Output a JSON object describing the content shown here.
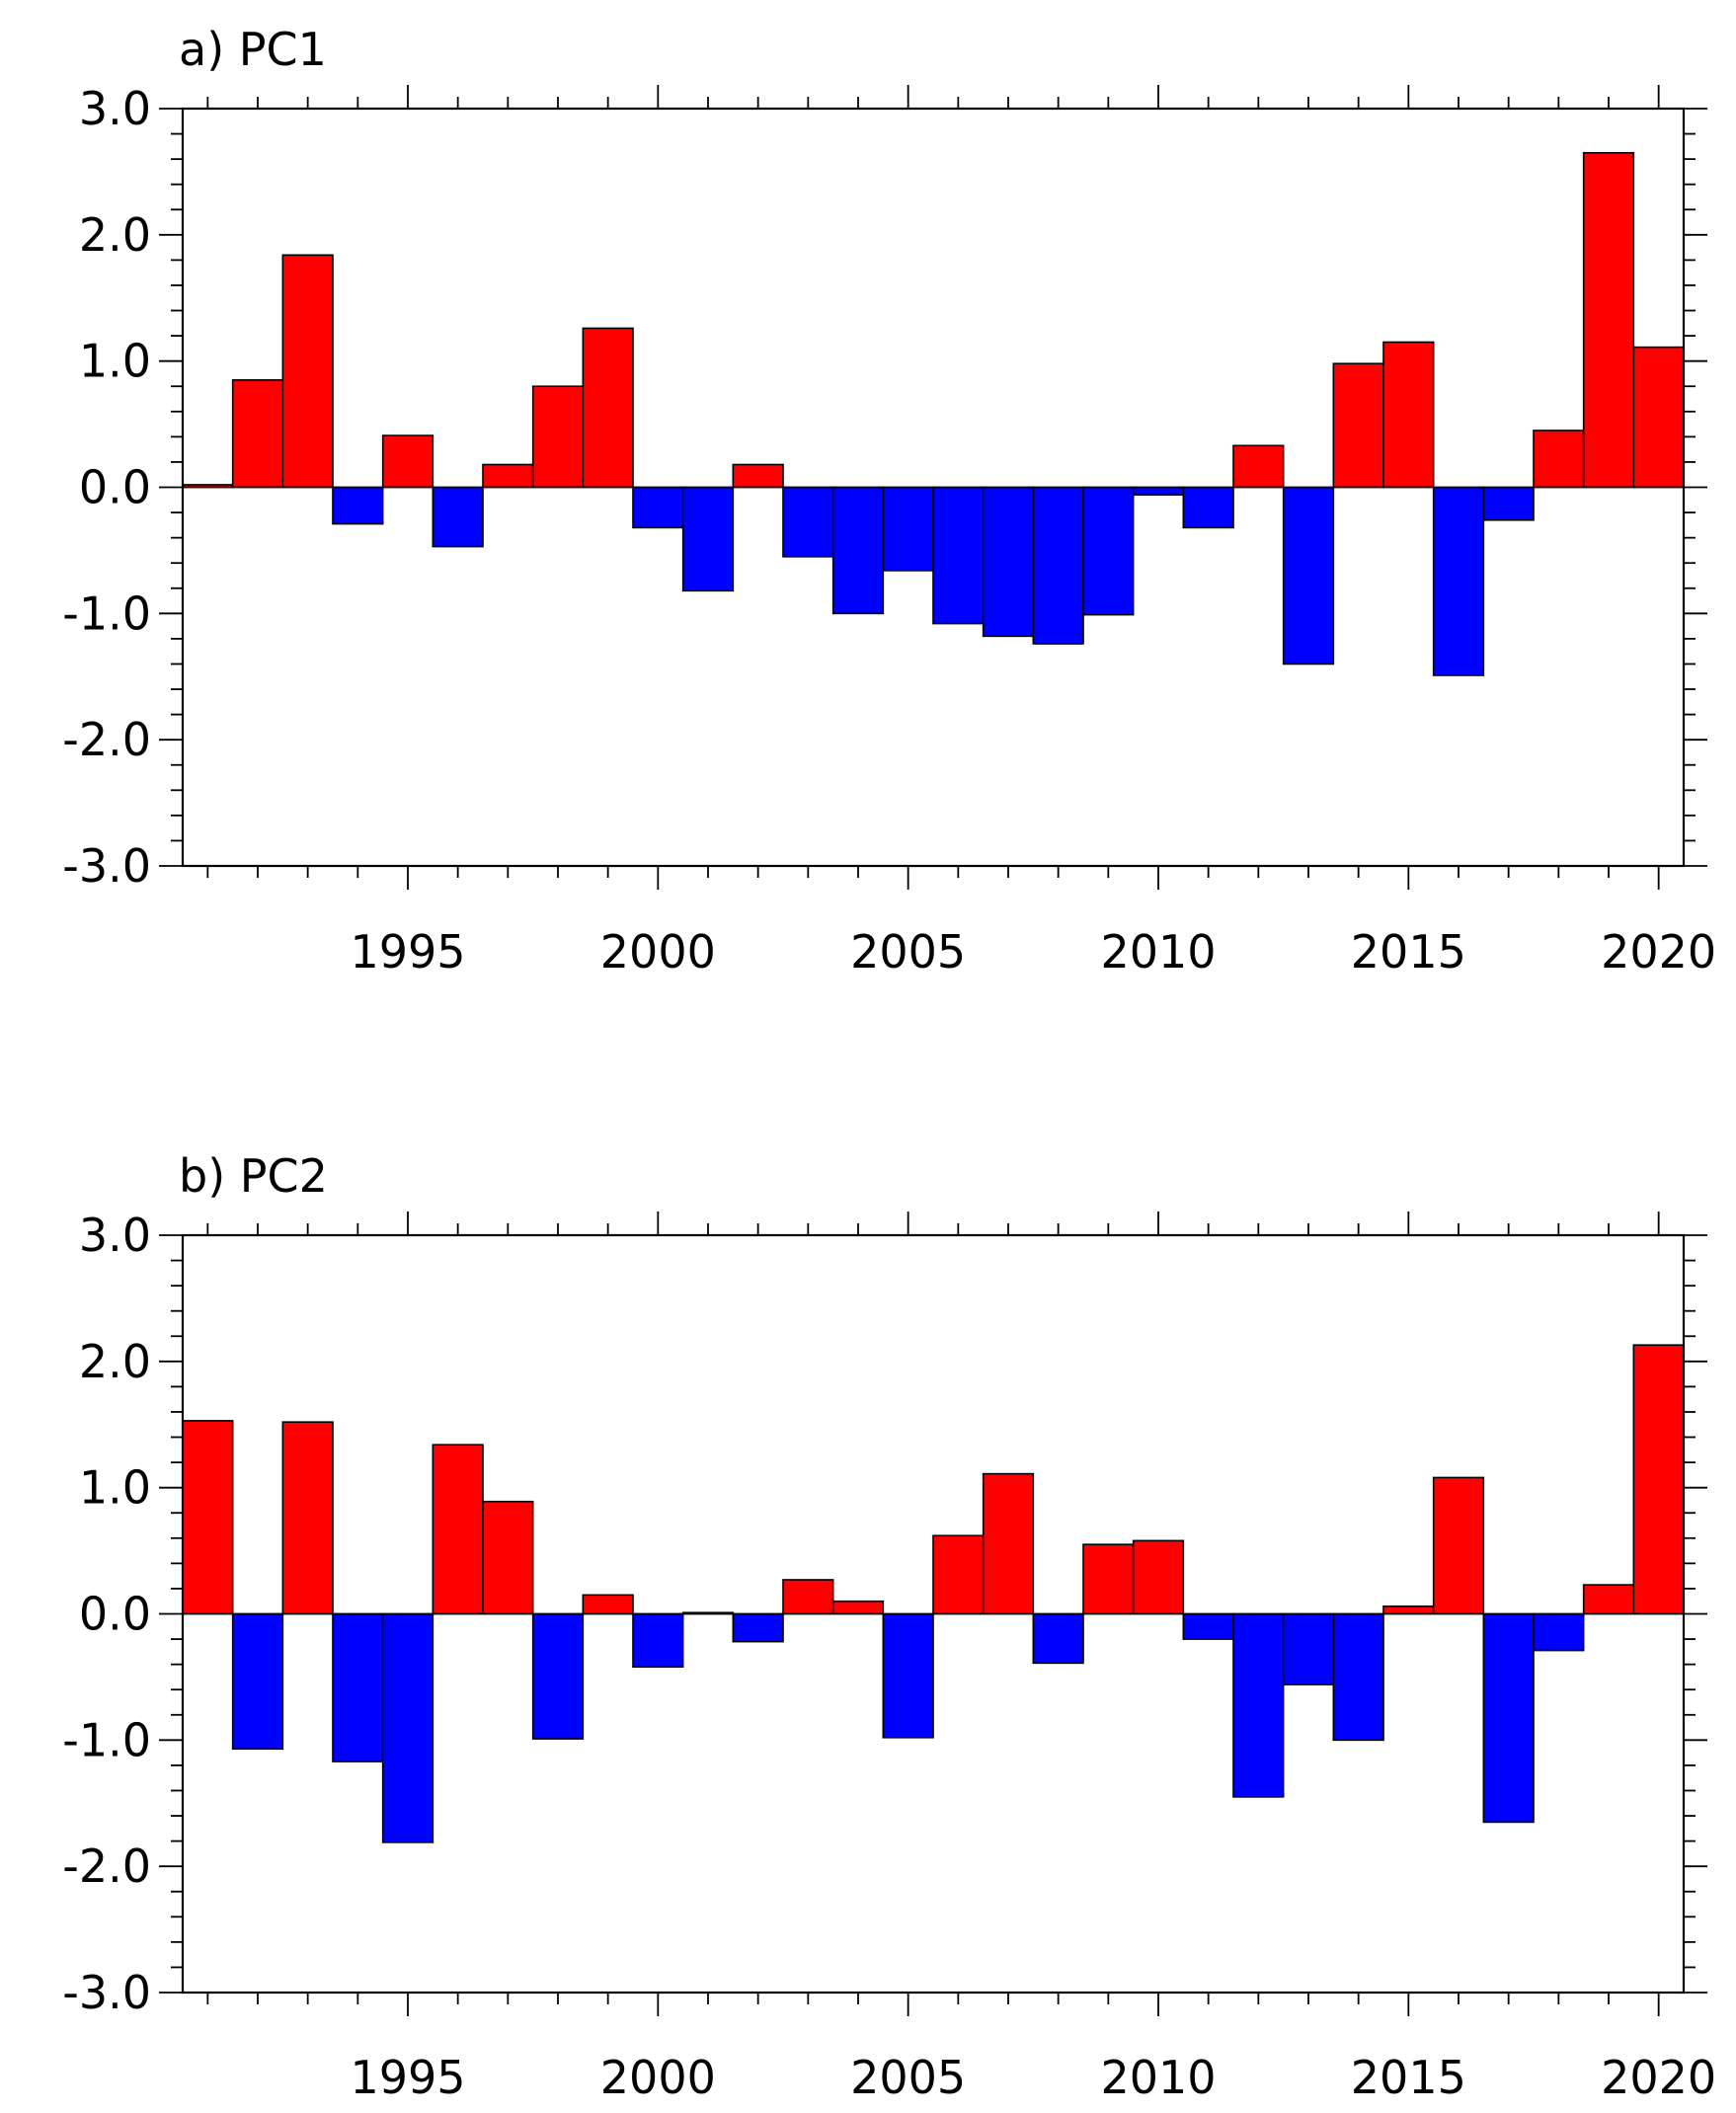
{
  "chart_data": [
    {
      "type": "bar",
      "title": "a) PC1",
      "x": [
        1991,
        1992,
        1993,
        1994,
        1995,
        1996,
        1997,
        1998,
        1999,
        2000,
        2001,
        2002,
        2003,
        2004,
        2005,
        2006,
        2007,
        2008,
        2009,
        2010,
        2011,
        2012,
        2013,
        2014,
        2015,
        2016,
        2017,
        2018,
        2019,
        2020
      ],
      "values": [
        0.02,
        0.85,
        1.84,
        -0.29,
        0.41,
        -0.47,
        0.18,
        0.8,
        1.26,
        -0.32,
        -0.82,
        0.18,
        -0.55,
        -1.0,
        -0.66,
        -1.08,
        -1.18,
        -1.24,
        -1.01,
        -0.06,
        -0.32,
        0.33,
        -1.4,
        0.98,
        1.15,
        -1.49,
        -0.26,
        0.45,
        2.65,
        1.11
      ],
      "xlim": [
        1990.5,
        2020.5
      ],
      "ylim": [
        -3.0,
        3.0
      ],
      "xticks": [
        "1995",
        "2000",
        "2005",
        "2010",
        "2015",
        "2020"
      ],
      "yticks": [
        "3.0",
        "2.0",
        "1.0",
        "0.0",
        "-1.0",
        "-2.0",
        "-3.0"
      ],
      "positive_color": "#ff0000",
      "negative_color": "#0000ff",
      "grid": false
    },
    {
      "type": "bar",
      "title": "b) PC2",
      "x": [
        1991,
        1992,
        1993,
        1994,
        1995,
        1996,
        1997,
        1998,
        1999,
        2000,
        2001,
        2002,
        2003,
        2004,
        2005,
        2006,
        2007,
        2008,
        2009,
        2010,
        2011,
        2012,
        2013,
        2014,
        2015,
        2016,
        2017,
        2018,
        2019,
        2020
      ],
      "values": [
        1.53,
        -1.07,
        1.52,
        -1.17,
        -1.81,
        1.34,
        0.89,
        -0.99,
        0.15,
        -0.42,
        0.01,
        -0.22,
        0.27,
        0.1,
        -0.98,
        0.62,
        1.11,
        -0.39,
        0.55,
        0.58,
        -0.2,
        -1.45,
        -0.56,
        -1.0,
        0.06,
        1.08,
        -1.65,
        -0.29,
        0.23,
        2.13
      ],
      "xlim": [
        1990.5,
        2020.5
      ],
      "ylim": [
        -3.0,
        3.0
      ],
      "xticks": [
        "1995",
        "2000",
        "2005",
        "2010",
        "2015",
        "2020"
      ],
      "yticks": [
        "3.0",
        "2.0",
        "1.0",
        "0.0",
        "-1.0",
        "-2.0",
        "-3.0"
      ],
      "positive_color": "#ff0000",
      "negative_color": "#0000ff",
      "grid": false
    }
  ]
}
